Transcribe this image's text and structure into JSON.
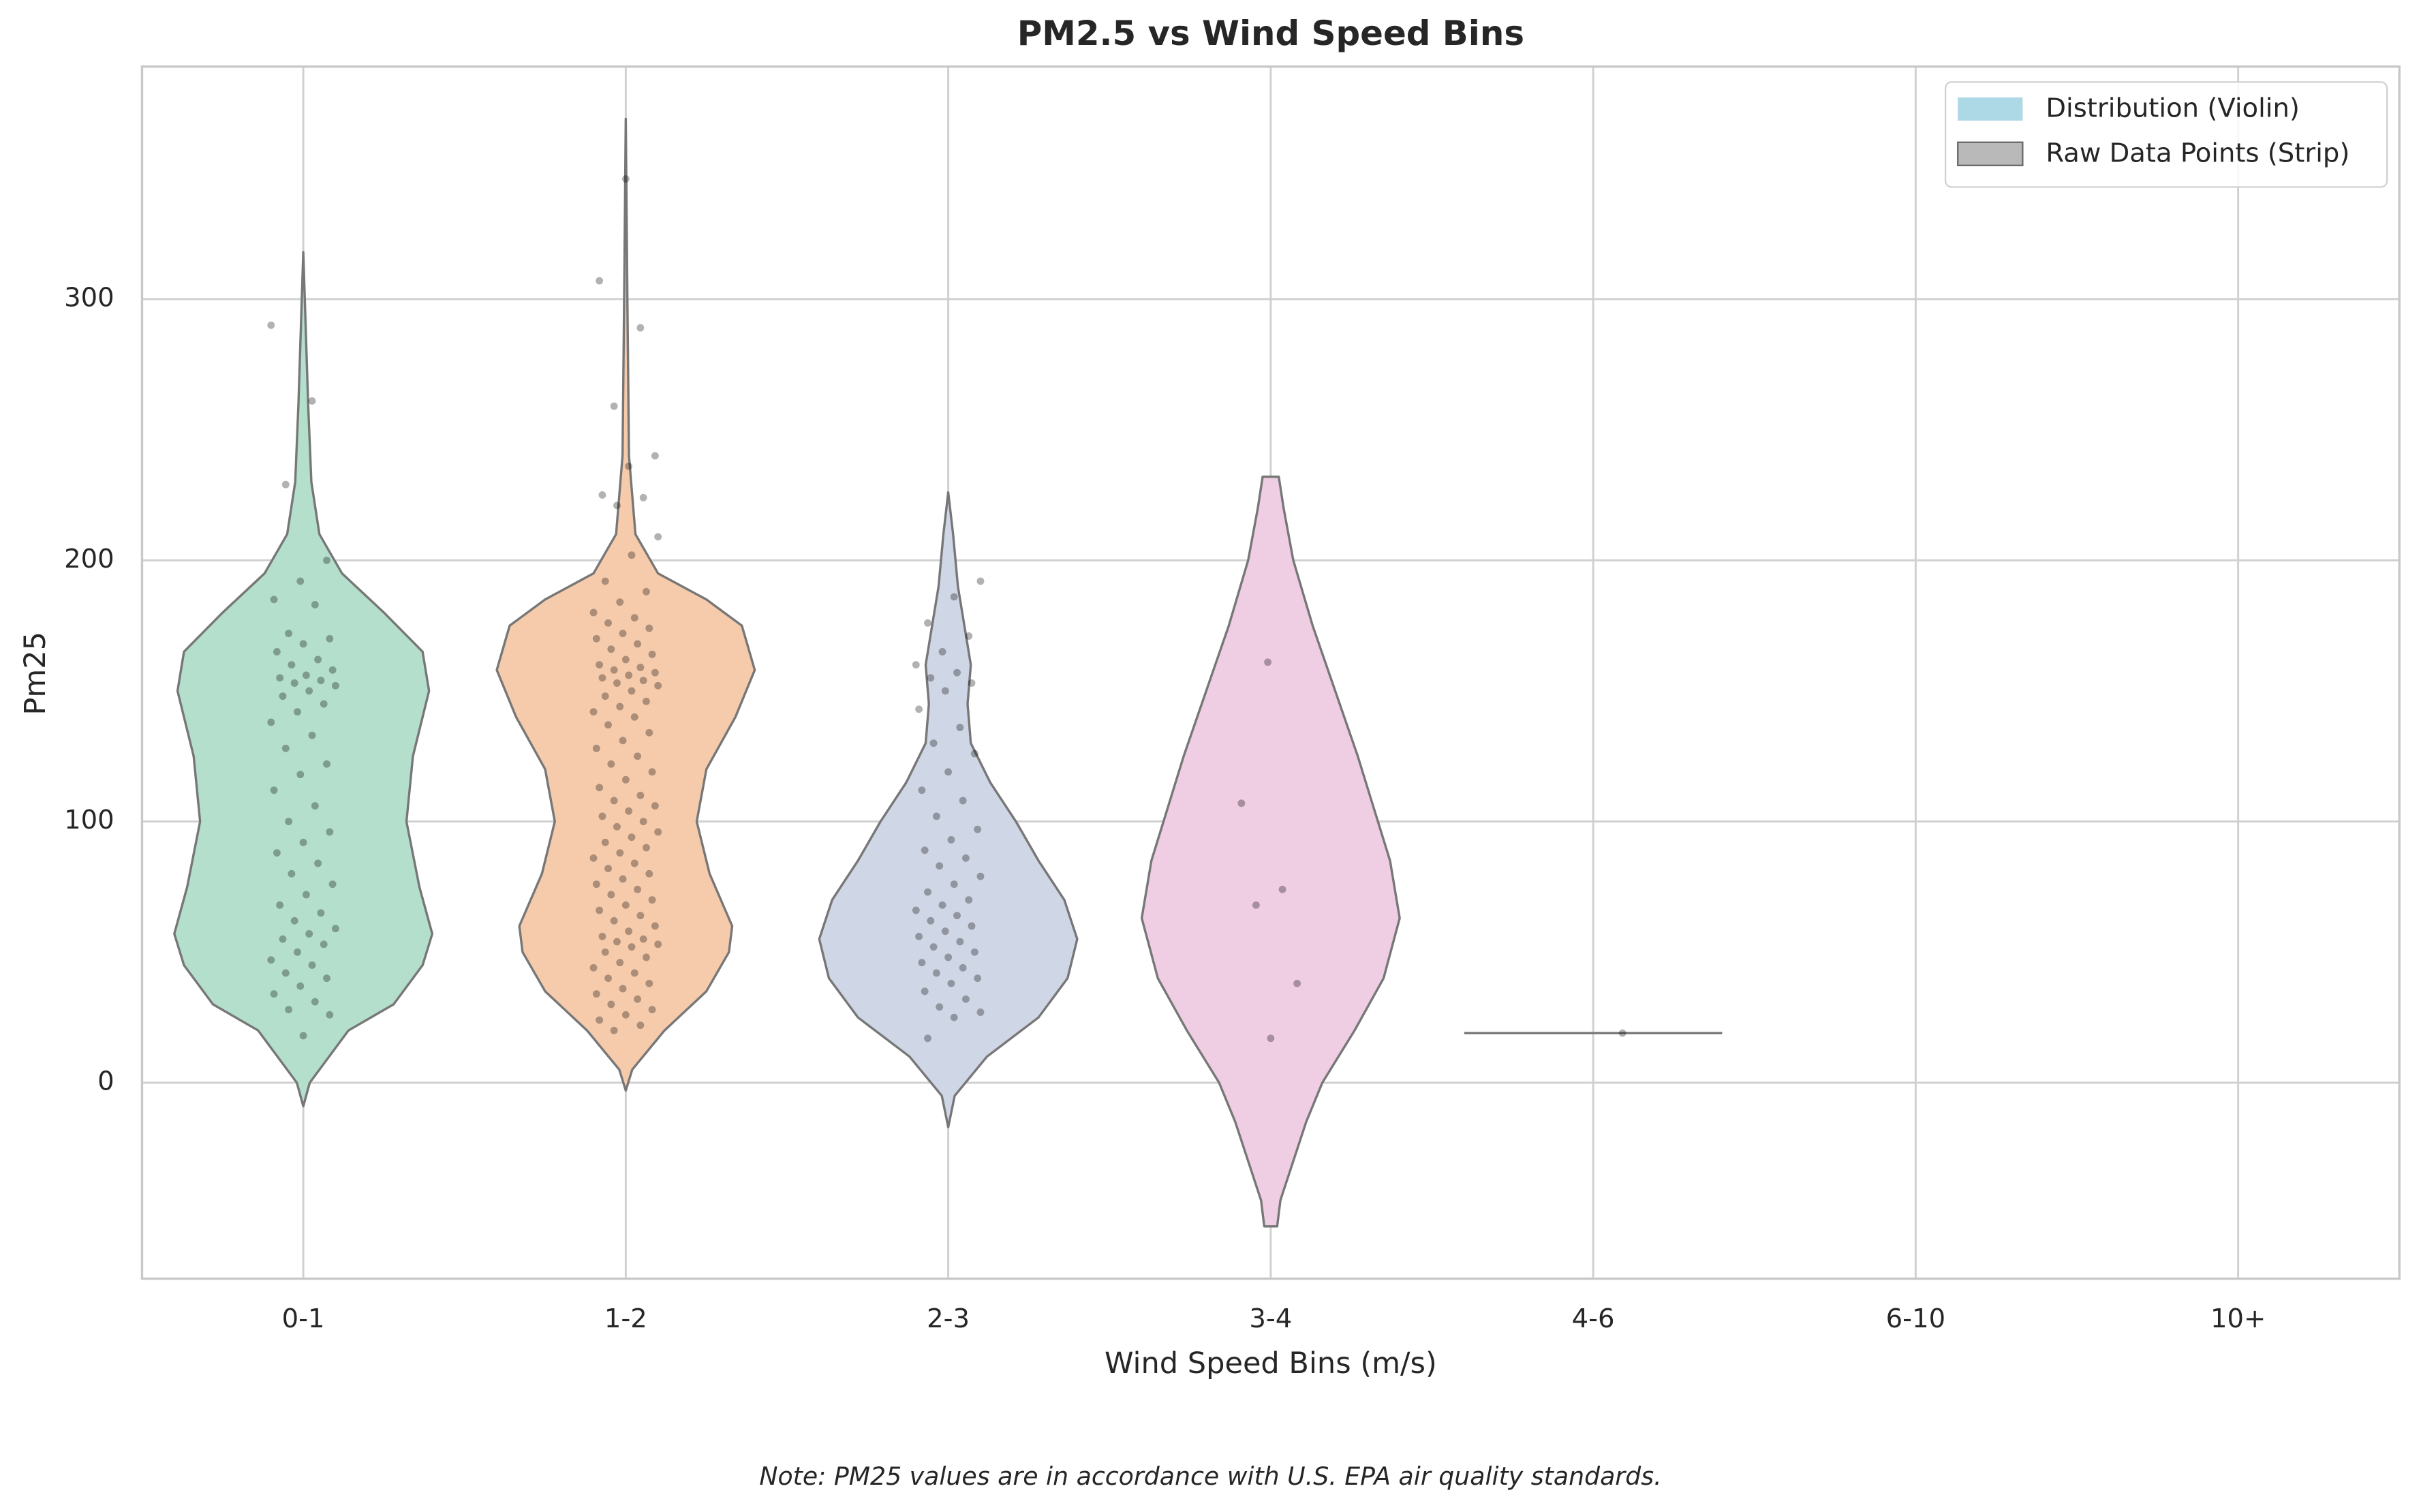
{
  "chart_data": {
    "type": "violin",
    "title": "PM2.5 vs Wind Speed Bins",
    "x_label": "Wind Speed Bins (m/s)",
    "y_label": "Pm25",
    "note": "Note: PM25 values are in accordance with U.S. EPA air quality standards.",
    "categories": [
      "0-1",
      "1-2",
      "2-3",
      "3-4",
      "4-6",
      "6-10",
      "10+"
    ],
    "ylim": [
      -75,
      389
    ],
    "yticks": [
      0,
      100,
      200,
      300
    ],
    "grid": true,
    "legend_loc": "upper right",
    "series": [
      {
        "name": "Distribution (Violin)",
        "color": "#add8e6",
        "colors": [
          "#b3dfcc",
          "#f5cbac",
          "#cfd6e5",
          "#efcde3",
          "#b3dfcc",
          "#f5cbac",
          "#cfd6e5"
        ],
        "profiles": [
          {
            "y": [
              -9,
              0,
              20,
              30,
              45,
              57,
              75,
              100,
              125,
              150,
              165,
              180,
              195,
              210,
              230,
              260,
              318
            ],
            "width": [
              0,
              0.02,
              0.14,
              0.28,
              0.37,
              0.4,
              0.36,
              0.32,
              0.34,
              0.39,
              0.37,
              0.25,
              0.12,
              0.05,
              0.025,
              0.015,
              0
            ]
          },
          {
            "y": [
              -3,
              5,
              20,
              35,
              50,
              60,
              80,
              100,
              120,
              140,
              158,
              175,
              185,
              195,
              210,
              240,
              300,
              369
            ],
            "width": [
              0,
              0.02,
              0.12,
              0.25,
              0.32,
              0.33,
              0.26,
              0.22,
              0.25,
              0.34,
              0.4,
              0.36,
              0.25,
              0.1,
              0.03,
              0.01,
              0.005,
              0
            ]
          },
          {
            "y": [
              -17,
              -5,
              10,
              25,
              40,
              55,
              70,
              85,
              100,
              115,
              130,
              145,
              160,
              175,
              190,
              210,
              226
            ],
            "width": [
              0,
              0.02,
              0.12,
              0.28,
              0.37,
              0.4,
              0.36,
              0.28,
              0.21,
              0.13,
              0.07,
              0.06,
              0.07,
              0.05,
              0.03,
              0.015,
              0
            ]
          },
          {
            "y": [
              -55,
              -45,
              -30,
              -15,
              0,
              20,
              40,
              63,
              85,
              105,
              125,
              150,
              175,
              200,
              220,
              232
            ],
            "width": [
              0.02,
              0.03,
              0.07,
              0.11,
              0.16,
              0.26,
              0.35,
              0.4,
              0.37,
              0.32,
              0.27,
              0.2,
              0.13,
              0.07,
              0.04,
              0.025
            ]
          },
          {
            "y": [
              19
            ],
            "width": [
              0.4
            ]
          },
          null,
          null
        ]
      },
      {
        "name": "Raw Data Points (Strip)",
        "color": "#808080",
        "point_color": "#000000",
        "values": [
          [
            290,
            261,
            229,
            200,
            192,
            185,
            183,
            172,
            170,
            168,
            165,
            162,
            160,
            158,
            156,
            155,
            154,
            153,
            152,
            150,
            148,
            145,
            142,
            138,
            133,
            128,
            122,
            118,
            112,
            106,
            100,
            96,
            92,
            88,
            84,
            80,
            76,
            72,
            68,
            65,
            62,
            59,
            57,
            55,
            53,
            50,
            47,
            45,
            42,
            40,
            37,
            34,
            31,
            28,
            26,
            18
          ],
          [
            346,
            307,
            289,
            259,
            240,
            236,
            225,
            224,
            221,
            209,
            202,
            192,
            188,
            184,
            180,
            178,
            176,
            174,
            172,
            170,
            168,
            166,
            164,
            162,
            160,
            159,
            158,
            157,
            156,
            155,
            154,
            153,
            152,
            150,
            148,
            146,
            144,
            142,
            140,
            137,
            134,
            131,
            128,
            125,
            122,
            119,
            116,
            113,
            110,
            108,
            106,
            104,
            102,
            100,
            98,
            96,
            94,
            92,
            90,
            88,
            86,
            84,
            82,
            80,
            78,
            76,
            74,
            72,
            70,
            68,
            66,
            64,
            62,
            60,
            58,
            56,
            55,
            54,
            53,
            52,
            50,
            48,
            46,
            44,
            42,
            40,
            38,
            36,
            34,
            32,
            30,
            28,
            26,
            24,
            22,
            20
          ],
          [
            192,
            186,
            176,
            171,
            165,
            160,
            157,
            155,
            153,
            150,
            143,
            136,
            130,
            126,
            119,
            112,
            108,
            102,
            97,
            93,
            89,
            86,
            83,
            79,
            76,
            73,
            70,
            68,
            66,
            64,
            62,
            60,
            58,
            56,
            54,
            52,
            50,
            48,
            46,
            44,
            42,
            40,
            38,
            35,
            32,
            29,
            27,
            25,
            17
          ],
          [
            161,
            107,
            74,
            68,
            38,
            17
          ],
          [
            19
          ],
          [],
          []
        ]
      }
    ]
  }
}
